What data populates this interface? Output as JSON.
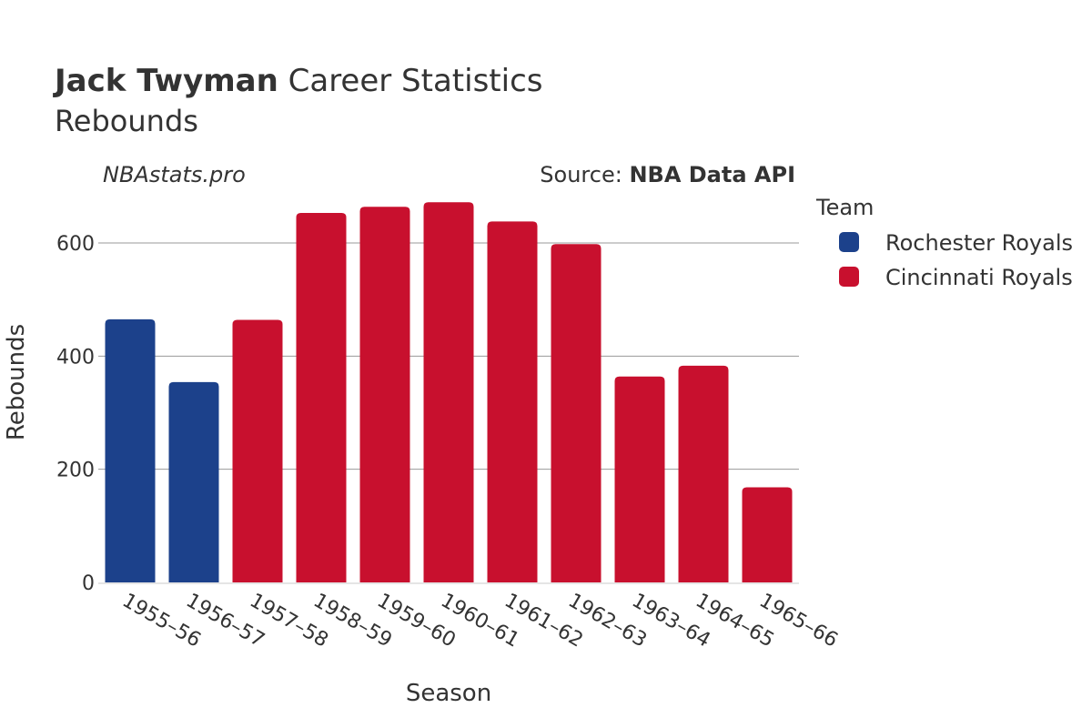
{
  "header": {
    "title_bold": "Jack Twyman",
    "title_rest": " Career Statistics",
    "subtitle": "Rebounds"
  },
  "watermark": "NBAstats.pro",
  "source": {
    "prefix": "Source: ",
    "name": "NBA Data API"
  },
  "legend": {
    "title": "Team"
  },
  "colors": {
    "Rochester Royals": "#1c418b",
    "Cincinnati Royals": "#c8102e",
    "gridline": "#999999",
    "text": "#333333"
  },
  "chart_data": {
    "type": "bar",
    "title": "Jack Twyman Career Statistics",
    "subtitle": "Rebounds",
    "xlabel": "Season",
    "ylabel": "Rebounds",
    "ylim": [
      0,
      700
    ],
    "yticks": [
      0,
      200,
      400,
      600
    ],
    "grid": true,
    "legend_position": "right",
    "categories": [
      "1955–56",
      "1956–57",
      "1957–58",
      "1958–59",
      "1959–60",
      "1960–61",
      "1961–62",
      "1962–63",
      "1963–64",
      "1964–65",
      "1965–66"
    ],
    "values": [
      465,
      354,
      464,
      653,
      664,
      672,
      638,
      598,
      364,
      383,
      168
    ],
    "teams": [
      "Rochester Royals",
      "Rochester Royals",
      "Cincinnati Royals",
      "Cincinnati Royals",
      "Cincinnati Royals",
      "Cincinnati Royals",
      "Cincinnati Royals",
      "Cincinnati Royals",
      "Cincinnati Royals",
      "Cincinnati Royals",
      "Cincinnati Royals"
    ],
    "series": [
      {
        "name": "Rochester Royals"
      },
      {
        "name": "Cincinnati Royals"
      }
    ]
  }
}
